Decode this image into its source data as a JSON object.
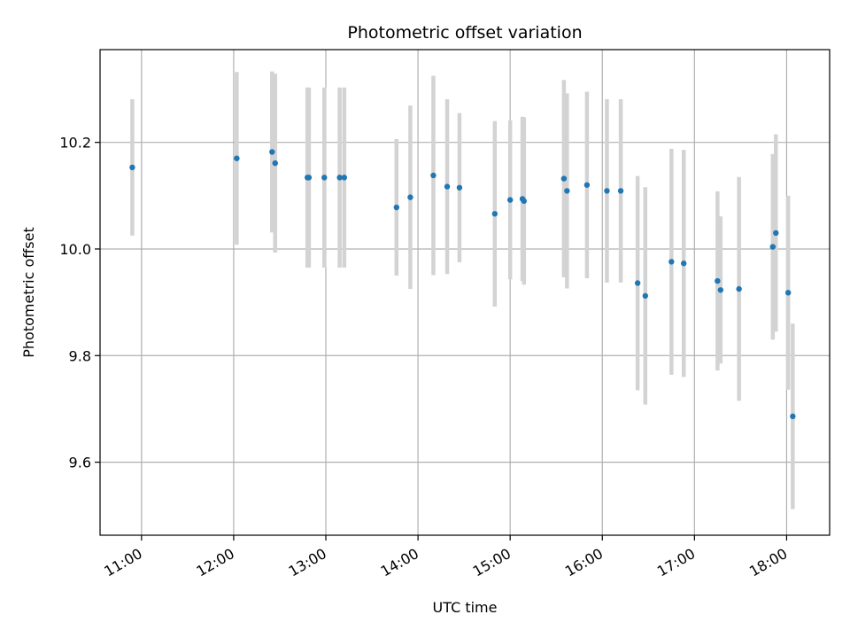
{
  "chart_data": {
    "type": "scatter",
    "title": "Photometric offset variation",
    "xlabel": "UTC time",
    "ylabel": "Photometric offset",
    "xlim": [
      "10:33",
      "18:28"
    ],
    "ylim": [
      9.463,
      10.374
    ],
    "x_ticks": [
      "11:00",
      "12:00",
      "13:00",
      "14:00",
      "15:00",
      "16:00",
      "17:00",
      "18:00"
    ],
    "y_ticks": [
      9.6,
      9.8,
      10.0,
      10.2
    ],
    "grid": true,
    "colors": {
      "point": "#1f77b4",
      "error_bar": "#d3d3d3",
      "grid": "#b0b0b0"
    },
    "points": [
      {
        "x": "10:54",
        "y": 10.153,
        "yerr": 0.128
      },
      {
        "x": "12:02",
        "y": 10.17,
        "yerr": 0.162
      },
      {
        "x": "12:25",
        "y": 10.182,
        "yerr": 0.151
      },
      {
        "x": "12:27",
        "y": 10.161,
        "yerr": 0.168
      },
      {
        "x": "12:48",
        "y": 10.134,
        "yerr": 0.169
      },
      {
        "x": "12:49",
        "y": 10.134,
        "yerr": 0.169
      },
      {
        "x": "12:59",
        "y": 10.134,
        "yerr": 0.169
      },
      {
        "x": "13:09",
        "y": 10.134,
        "yerr": 0.169
      },
      {
        "x": "13:12",
        "y": 10.134,
        "yerr": 0.169
      },
      {
        "x": "13:46",
        "y": 10.078,
        "yerr": 0.128
      },
      {
        "x": "13:55",
        "y": 10.097,
        "yerr": 0.172
      },
      {
        "x": "14:10",
        "y": 10.138,
        "yerr": 0.187
      },
      {
        "x": "14:19",
        "y": 10.117,
        "yerr": 0.164
      },
      {
        "x": "14:27",
        "y": 10.115,
        "yerr": 0.14
      },
      {
        "x": "14:50",
        "y": 10.066,
        "yerr": 0.174
      },
      {
        "x": "15:00",
        "y": 10.092,
        "yerr": 0.149
      },
      {
        "x": "15:08",
        "y": 10.094,
        "yerr": 0.154
      },
      {
        "x": "15:09",
        "y": 10.09,
        "yerr": 0.157
      },
      {
        "x": "15:35",
        "y": 10.132,
        "yerr": 0.185
      },
      {
        "x": "15:37",
        "y": 10.109,
        "yerr": 0.183
      },
      {
        "x": "15:50",
        "y": 10.12,
        "yerr": 0.175
      },
      {
        "x": "16:03",
        "y": 10.109,
        "yerr": 0.172
      },
      {
        "x": "16:12",
        "y": 10.109,
        "yerr": 0.172
      },
      {
        "x": "16:23",
        "y": 9.936,
        "yerr": 0.201
      },
      {
        "x": "16:28",
        "y": 9.912,
        "yerr": 0.204
      },
      {
        "x": "16:45",
        "y": 9.976,
        "yerr": 0.212
      },
      {
        "x": "16:53",
        "y": 9.973,
        "yerr": 0.213
      },
      {
        "x": "17:15",
        "y": 9.94,
        "yerr": 0.168
      },
      {
        "x": "17:17",
        "y": 9.923,
        "yerr": 0.138
      },
      {
        "x": "17:29",
        "y": 9.925,
        "yerr": 0.21
      },
      {
        "x": "17:51",
        "y": 10.004,
        "yerr": 0.174
      },
      {
        "x": "17:53",
        "y": 10.03,
        "yerr": 0.185
      },
      {
        "x": "18:01",
        "y": 9.918,
        "yerr": 0.182
      },
      {
        "x": "18:04",
        "y": 9.686,
        "yerr": 0.174
      }
    ]
  }
}
